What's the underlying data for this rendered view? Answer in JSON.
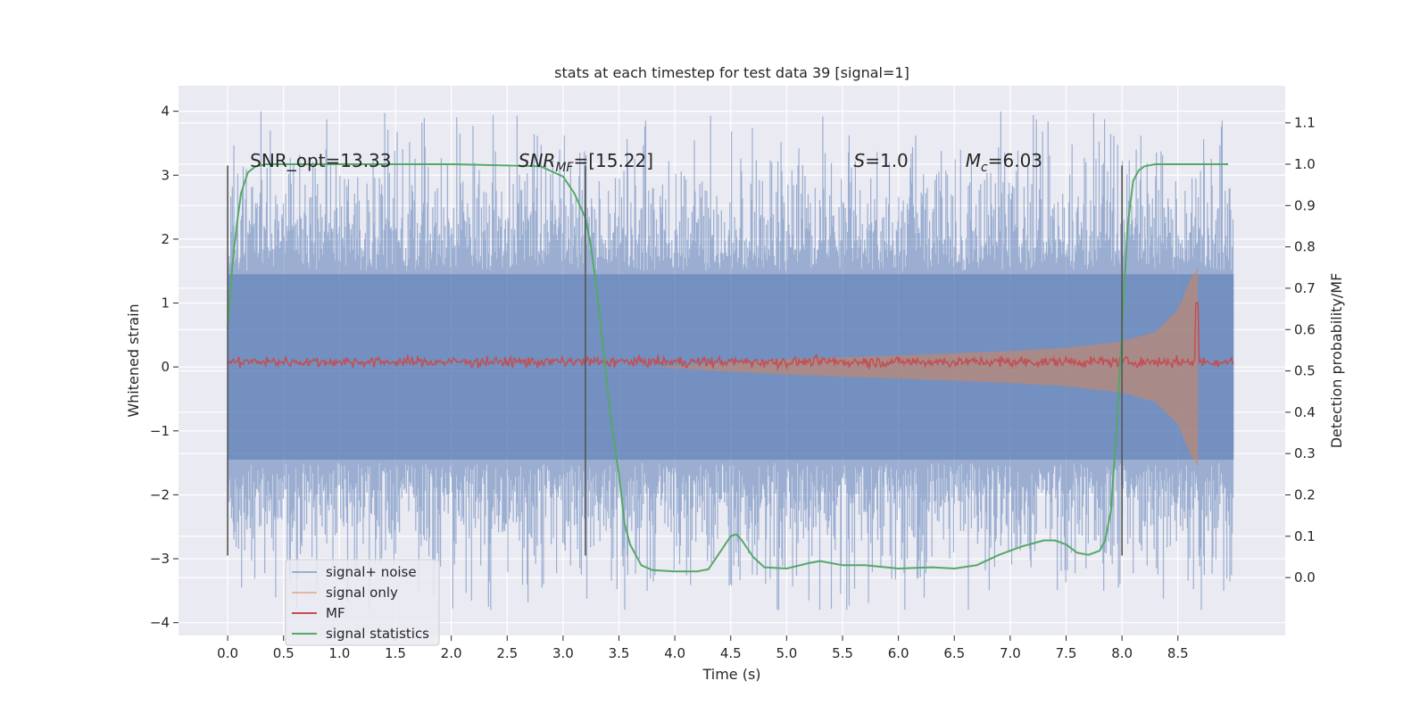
{
  "chart_data": {
    "type": "line",
    "title": "stats at each timestep for test data 39 [signal=1]",
    "xlabel": "Time (s)",
    "ylabel": "Whitened strain",
    "y2label": "Detection probability/MF",
    "xlim": [
      -0.44,
      9.46
    ],
    "ylim": [
      -4.2,
      4.4
    ],
    "y2lim": [
      -0.14,
      1.19
    ],
    "grid": true,
    "legend_position": "lower-left",
    "x_ticks": [
      "0.0",
      "0.5",
      "1.0",
      "1.5",
      "2.0",
      "2.5",
      "3.0",
      "3.5",
      "4.0",
      "4.5",
      "5.0",
      "5.5",
      "6.0",
      "6.5",
      "7.0",
      "7.5",
      "8.0",
      "8.5"
    ],
    "y_ticks": [
      "4",
      "3",
      "2",
      "1",
      "0",
      "−1",
      "−2",
      "−3",
      "−4"
    ],
    "y2_ticks": [
      "1.1",
      "1.0",
      "0.9",
      "0.8",
      "0.7",
      "0.6",
      "0.5",
      "0.4",
      "0.3",
      "0.2",
      "0.1",
      "0.0"
    ],
    "annotations": [
      {
        "text": "SNR_opt=13.33",
        "x": 0.2,
        "y": 3.2
      },
      {
        "text": "SNR",
        "sub": "MF",
        "rest": "=[15.22]",
        "x": 2.6,
        "y": 3.2
      },
      {
        "text": "S",
        "sub": "",
        "rest": "=1.0",
        "x": 5.6,
        "y": 3.2
      },
      {
        "text": "M",
        "sub": "c",
        "rest": "=6.03",
        "x": 6.6,
        "y": 3.2
      }
    ],
    "vlines": [
      0.0,
      3.2,
      8.0
    ],
    "vline_range": [
      -2.95,
      3.15
    ],
    "series": [
      {
        "name": "signal+ noise",
        "color": "#4c72b0",
        "alpha": 0.5,
        "t_end": 9.0,
        "envelope_sigma": 1.0,
        "peak_max": 4.0,
        "peak_min": -3.8
      },
      {
        "name": "signal only",
        "color": "#dd8452",
        "alpha": 0.5,
        "t_start": 3.8,
        "t_end": 8.68,
        "envelope": [
          [
            3.8,
            0.0
          ],
          [
            5.0,
            0.12
          ],
          [
            6.0,
            0.18
          ],
          [
            7.0,
            0.25
          ],
          [
            7.5,
            0.3
          ],
          [
            8.0,
            0.4
          ],
          [
            8.3,
            0.55
          ],
          [
            8.5,
            0.9
          ],
          [
            8.62,
            1.4
          ],
          [
            8.68,
            1.55
          ]
        ]
      },
      {
        "name": "MF",
        "color": "#c44e52",
        "alpha": 1.0,
        "t_end": 9.0,
        "baseline": 0.08,
        "spike_t": 8.67,
        "spike_y": 1.0
      },
      {
        "name": "signal statistics",
        "color": "#55a868",
        "alpha": 1.0,
        "axis": "right",
        "x": [
          0.0,
          0.04,
          0.08,
          0.12,
          0.18,
          0.25,
          0.35,
          0.6,
          1.0,
          2.0,
          2.8,
          3.0,
          3.1,
          3.2,
          3.25,
          3.3,
          3.35,
          3.4,
          3.45,
          3.5,
          3.55,
          3.6,
          3.7,
          3.8,
          4.0,
          4.2,
          4.3,
          4.4,
          4.5,
          4.55,
          4.6,
          4.7,
          4.8,
          5.0,
          5.2,
          5.3,
          5.5,
          5.7,
          6.0,
          6.3,
          6.5,
          6.7,
          6.9,
          7.1,
          7.3,
          7.4,
          7.5,
          7.6,
          7.7,
          7.8,
          7.85,
          7.9,
          7.95,
          8.0,
          8.05,
          8.1,
          8.15,
          8.2,
          8.3,
          8.5,
          8.95
        ],
        "y": [
          0.6,
          0.75,
          0.85,
          0.93,
          0.98,
          0.995,
          1.0,
          1.0,
          1.0,
          1.0,
          0.995,
          0.97,
          0.93,
          0.87,
          0.8,
          0.7,
          0.58,
          0.45,
          0.34,
          0.25,
          0.13,
          0.08,
          0.03,
          0.018,
          0.015,
          0.015,
          0.02,
          0.06,
          0.1,
          0.105,
          0.09,
          0.05,
          0.025,
          0.022,
          0.035,
          0.04,
          0.03,
          0.03,
          0.022,
          0.025,
          0.022,
          0.03,
          0.055,
          0.075,
          0.09,
          0.09,
          0.08,
          0.06,
          0.055,
          0.065,
          0.09,
          0.16,
          0.35,
          0.6,
          0.85,
          0.96,
          0.985,
          0.995,
          1.0,
          1.0,
          1.0
        ]
      }
    ]
  }
}
